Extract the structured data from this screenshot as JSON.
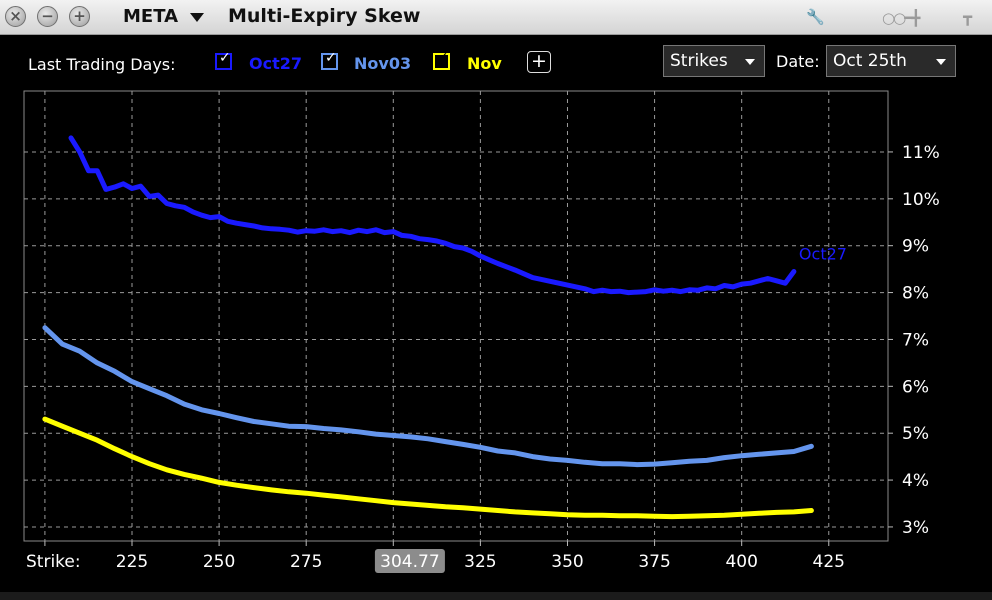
{
  "window": {
    "symbol": "META",
    "title": "Multi-Expiry Skew"
  },
  "toolbar": {
    "last_trading_days_label": "Last Trading Days:",
    "expiries": [
      {
        "label": "Oct27",
        "color": "#1a1aff",
        "checked": true
      },
      {
        "label": "Nov03",
        "color": "#6495ed",
        "checked": true
      },
      {
        "label": "Nov",
        "color": "#ffff00",
        "checked": true
      }
    ],
    "add_label": "+",
    "strikes_dropdown": "Strikes",
    "date_label": "Date:",
    "date_value": "Oct 25th"
  },
  "chart_data": {
    "type": "line",
    "xlabel": "Strike:",
    "x_ticks": [
      225,
      250,
      275,
      325,
      350,
      375,
      400,
      425
    ],
    "crosshair_x": "304.77",
    "y_ticks": [
      "3%",
      "4%",
      "5%",
      "6%",
      "7%",
      "8%",
      "9%",
      "10%",
      "11%"
    ],
    "xlim": [
      194,
      442
    ],
    "ylim": [
      2.7,
      12.3
    ],
    "grid": true,
    "series": [
      {
        "name": "Oct27",
        "color": "#1a1aff",
        "x": [
          207.5,
          210,
          212.5,
          215,
          217.5,
          220,
          222.5,
          225,
          227.5,
          230,
          232.5,
          235,
          237.5,
          240,
          242.5,
          245,
          247.5,
          250,
          252.5,
          255,
          257.5,
          260,
          262.5,
          265,
          267.5,
          270,
          272.5,
          275,
          277.5,
          280,
          282.5,
          285,
          287.5,
          290,
          292.5,
          295,
          297.5,
          300,
          302.5,
          305,
          307.5,
          310,
          312.5,
          315,
          317.5,
          320,
          322.5,
          325,
          327.5,
          330,
          332.5,
          335,
          337.5,
          340,
          342.5,
          345,
          347.5,
          350,
          352.5,
          355,
          357.5,
          360,
          362.5,
          365,
          367.5,
          370,
          372.5,
          375,
          377.5,
          380,
          382.5,
          385,
          387.5,
          390,
          392.5,
          395,
          397.5,
          400,
          402.5,
          405,
          407.5,
          410,
          412.5,
          415
        ],
        "values": [
          11.3,
          11.0,
          10.6,
          10.6,
          10.2,
          10.25,
          10.32,
          10.22,
          10.27,
          10.05,
          10.08,
          9.9,
          9.85,
          9.82,
          9.72,
          9.65,
          9.6,
          9.62,
          9.52,
          9.48,
          9.45,
          9.42,
          9.38,
          9.36,
          9.35,
          9.33,
          9.29,
          9.32,
          9.31,
          9.34,
          9.3,
          9.32,
          9.28,
          9.33,
          9.3,
          9.34,
          9.28,
          9.3,
          9.22,
          9.2,
          9.15,
          9.13,
          9.1,
          9.05,
          8.98,
          8.95,
          8.88,
          8.78,
          8.7,
          8.62,
          8.55,
          8.48,
          8.4,
          8.32,
          8.28,
          8.24,
          8.2,
          8.16,
          8.12,
          8.08,
          8.02,
          8.05,
          8.02,
          8.03,
          8.0,
          8.01,
          8.02,
          8.06,
          8.03,
          8.05,
          8.02,
          8.06,
          8.05,
          8.1,
          8.08,
          8.15,
          8.12,
          8.18,
          8.2,
          8.25,
          8.3,
          8.25,
          8.2,
          8.45
        ]
      },
      {
        "name": "Nov03",
        "color": "#6495ed",
        "x": [
          200,
          205,
          210,
          215,
          220,
          225,
          230,
          235,
          240,
          245,
          250,
          255,
          260,
          265,
          270,
          275,
          280,
          285,
          290,
          295,
          300,
          305,
          310,
          315,
          320,
          325,
          330,
          335,
          340,
          345,
          350,
          355,
          360,
          365,
          370,
          375,
          380,
          385,
          390,
          395,
          400,
          405,
          410,
          415,
          420
        ],
        "values": [
          7.25,
          6.9,
          6.75,
          6.5,
          6.32,
          6.1,
          5.95,
          5.8,
          5.62,
          5.5,
          5.42,
          5.33,
          5.25,
          5.2,
          5.15,
          5.14,
          5.1,
          5.07,
          5.03,
          4.98,
          4.95,
          4.92,
          4.88,
          4.82,
          4.76,
          4.7,
          4.62,
          4.58,
          4.5,
          4.45,
          4.42,
          4.38,
          4.35,
          4.35,
          4.33,
          4.34,
          4.37,
          4.4,
          4.42,
          4.48,
          4.52,
          4.55,
          4.58,
          4.61,
          4.72
        ]
      },
      {
        "name": "Nov",
        "color": "#ffff00",
        "x": [
          200,
          205,
          210,
          215,
          220,
          225,
          230,
          235,
          240,
          245,
          250,
          255,
          260,
          265,
          270,
          275,
          280,
          285,
          290,
          295,
          300,
          305,
          310,
          315,
          320,
          325,
          330,
          335,
          340,
          345,
          350,
          355,
          360,
          365,
          370,
          375,
          380,
          385,
          390,
          395,
          400,
          405,
          410,
          415,
          420
        ],
        "values": [
          5.3,
          5.15,
          5.0,
          4.85,
          4.67,
          4.5,
          4.35,
          4.22,
          4.12,
          4.04,
          3.95,
          3.89,
          3.84,
          3.79,
          3.75,
          3.72,
          3.68,
          3.64,
          3.6,
          3.56,
          3.52,
          3.49,
          3.46,
          3.43,
          3.41,
          3.38,
          3.35,
          3.32,
          3.3,
          3.28,
          3.26,
          3.25,
          3.25,
          3.24,
          3.24,
          3.23,
          3.22,
          3.23,
          3.24,
          3.25,
          3.27,
          3.29,
          3.31,
          3.32,
          3.35
        ]
      }
    ],
    "end_label": "Oct27"
  }
}
